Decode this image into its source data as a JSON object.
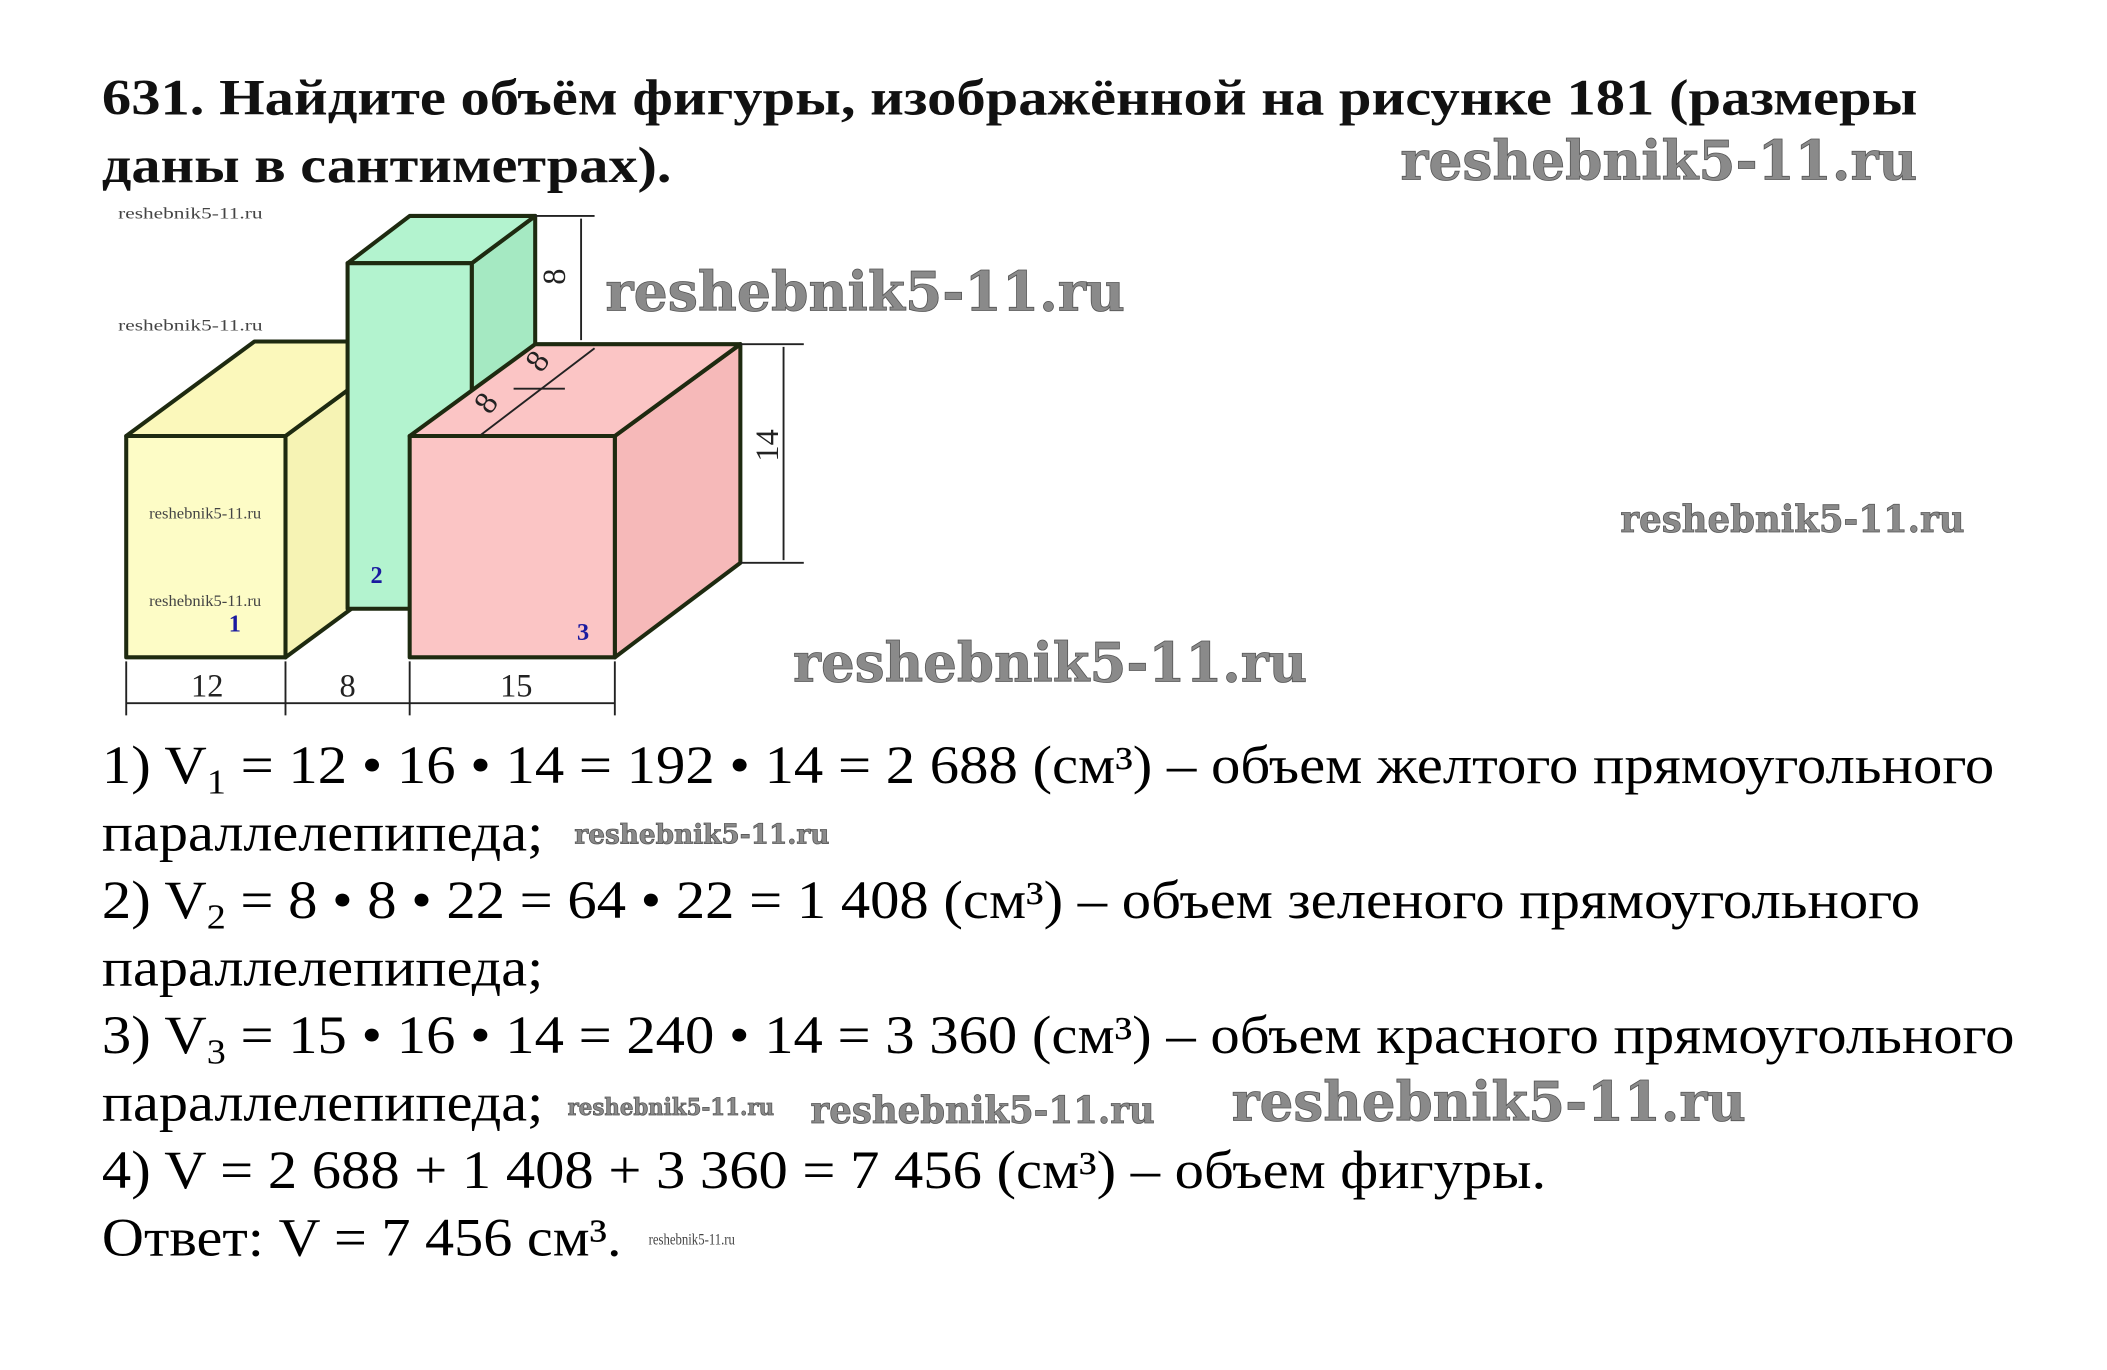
{
  "task": {
    "title_line1": "631. Найдите объём фигуры, изображённой на рисунке 181 (размеры",
    "title_line2": "даны в сантиметрах)."
  },
  "figure": {
    "dimensions": {
      "width_1": "12",
      "width_2": "8",
      "width_3": "15",
      "height_top": "8",
      "height_right": "14",
      "depth_1": "8",
      "depth_2": "8"
    },
    "block_labels": [
      "1",
      "2",
      "3"
    ],
    "colors": {
      "yellow": "#fdfcc6",
      "green": "#b3f3cf",
      "red": "#fbc5c5"
    }
  },
  "solution": {
    "lines": [
      {
        "pre": "1) V",
        "sub": "1",
        "post": " = 12 • 16 • 14 = 192 • 14 = 2 688 (см³) – объем желтого прямоугольного"
      },
      {
        "pre": "параллелепипеда;",
        "sub": "",
        "post": ""
      },
      {
        "pre": "2) V",
        "sub": "2",
        "post": " = 8 • 8 • 22 = 64 • 22 = 1 408 (см³) – объем зеленого прямоугольного"
      },
      {
        "pre": "параллелепипеда;",
        "sub": "",
        "post": ""
      },
      {
        "pre": "3) V",
        "sub": "3",
        "post": " = 15 • 16 • 14 = 240 • 14 = 3 360 (см³) – объем красного прямоугольного"
      },
      {
        "pre": "параллелепипеда;",
        "sub": "",
        "post": ""
      },
      {
        "pre": "4) V = 2 688 + 1 408 + 3 360 = 7 456 (см³) – объем фигуры.",
        "sub": "",
        "post": ""
      },
      {
        "pre": "Ответ: V = 7 456 см³.",
        "sub": "",
        "post": ""
      }
    ]
  },
  "watermark": "reshebnik5-11.ru"
}
